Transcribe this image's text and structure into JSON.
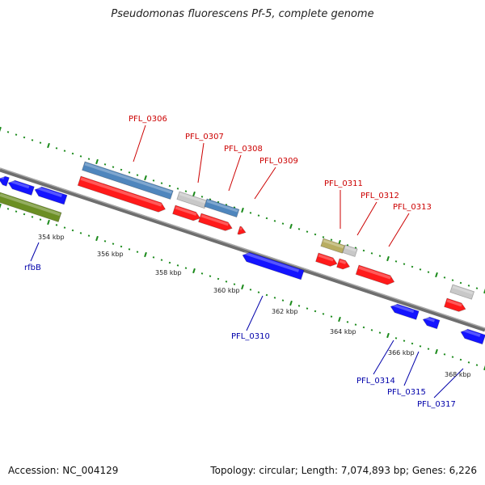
{
  "title": "Pseudomonas fluorescens Pf-5, complete genome",
  "footer": {
    "accession": "Accession: NC_004129",
    "stats": "Topology: circular; Length: 7,074,893 bp; Genes: 6,226"
  },
  "colors": {
    "cds_forward": "#ff1a1a",
    "cds_reverse": "#1414ff",
    "backbone": "#888888",
    "tick": "#1a8a1a",
    "label_forward": "#cc0000",
    "label_reverse": "#0000aa",
    "steelblue_feature": "#4f86bd",
    "grey_feature": "#c8c8c8",
    "olive_feature": "#b8ad62",
    "green_feature": "#6b8e23"
  },
  "scale_labels": [
    "354 kbp",
    "356 kbp",
    "358 kbp",
    "360 kbp",
    "362 kbp",
    "364 kbp",
    "366 kbp",
    "368 kbp"
  ],
  "gene_labels_forward": [
    "PFL_0306",
    "PFL_0307",
    "PFL_0308",
    "PFL_0309",
    "PFL_0311",
    "PFL_0312",
    "PFL_0313"
  ],
  "gene_labels_reverse": [
    "rfbB",
    "PFL_0310",
    "PFL_0314",
    "PFL_0315",
    "PFL_0317"
  ]
}
